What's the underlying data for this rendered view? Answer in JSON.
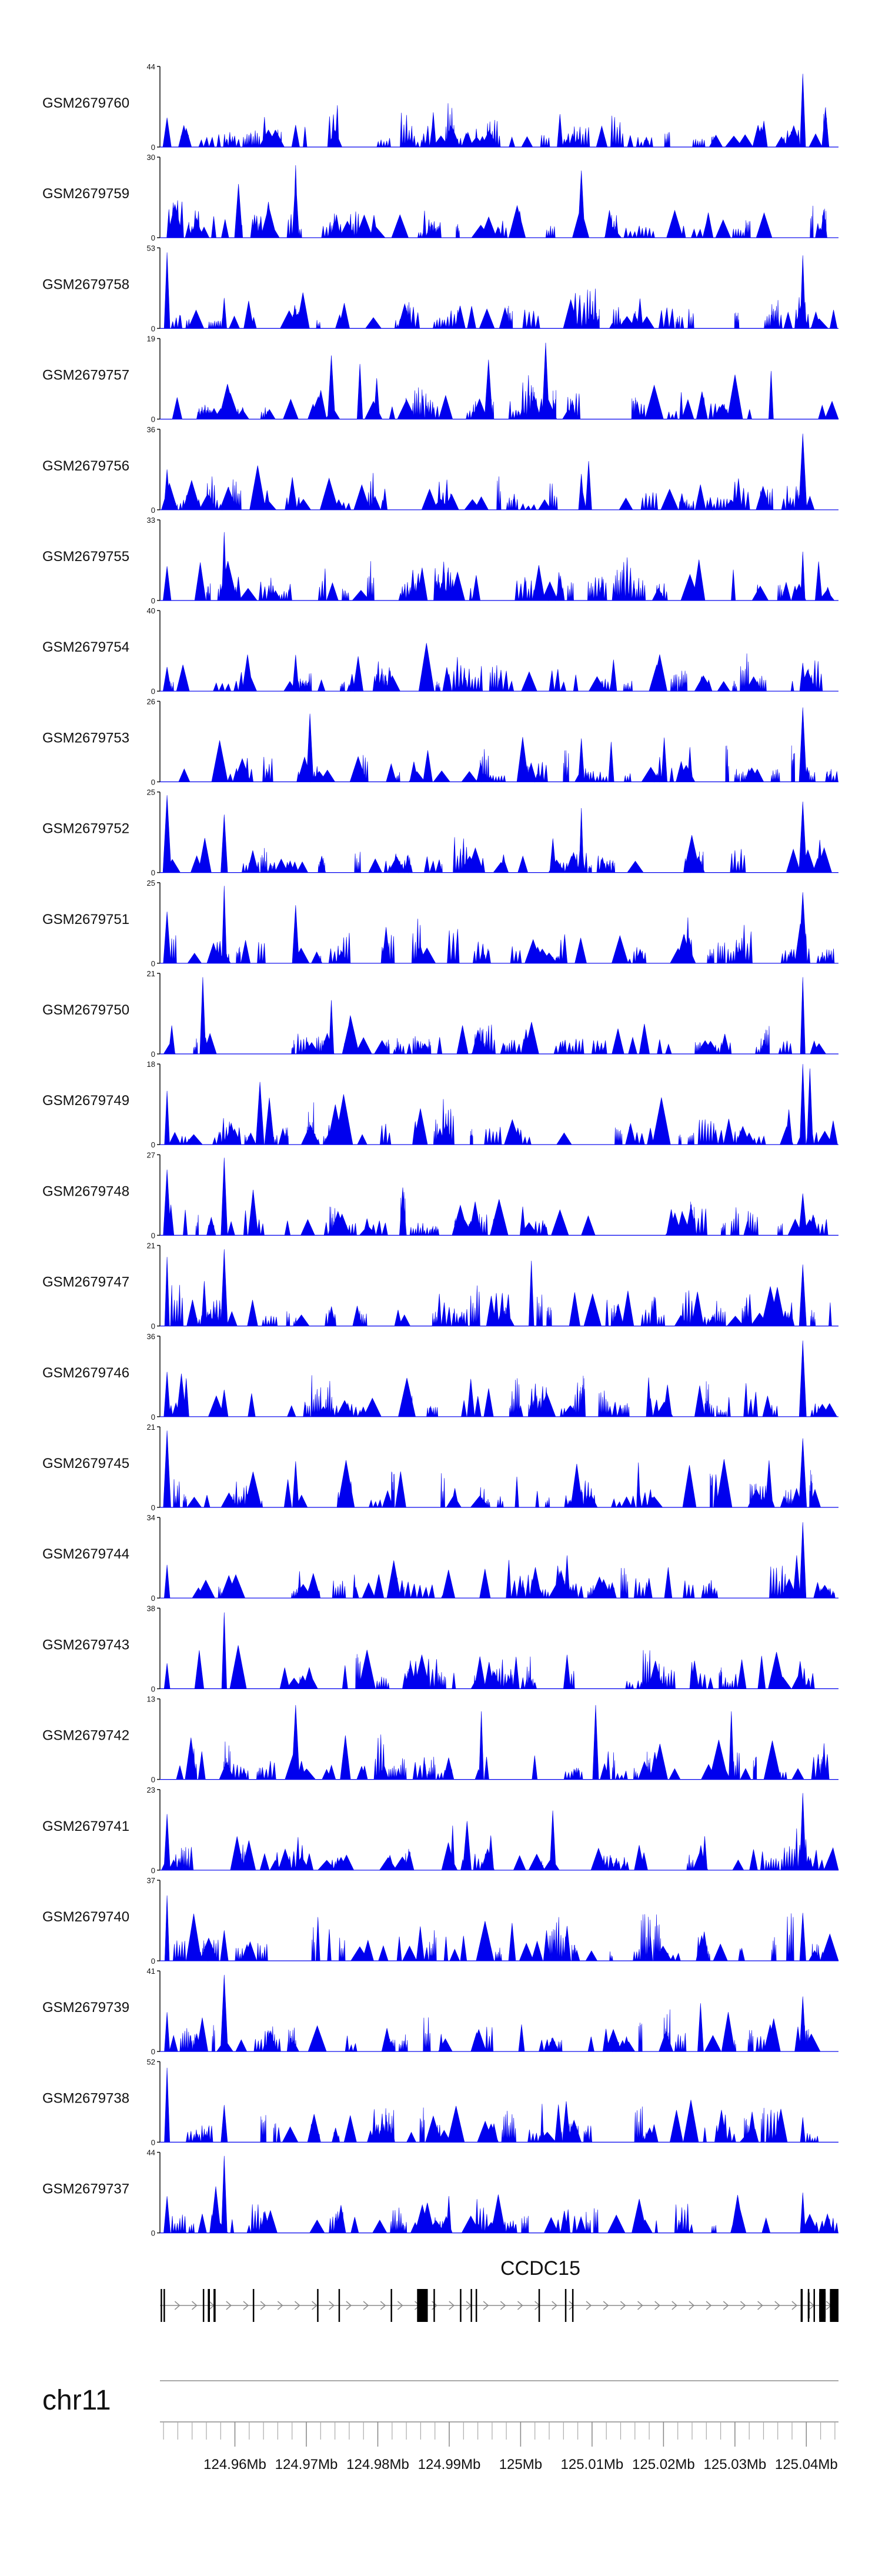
{
  "chart_data": {
    "type": "area",
    "colors": {
      "fill": "#0000ee",
      "axis": "#111111",
      "gene": "#000000",
      "intron": "#8c8c8c"
    },
    "xlim": [
      124.9495,
      125.0445
    ],
    "x_unit": "Mb",
    "tracks": [
      {
        "name": "GSM2679760",
        "ymax": "44",
        "ymin": "0",
        "seed": 7601,
        "peaks": [
          {
            "x": 125.0395,
            "y": 40
          },
          {
            "x": 124.9505,
            "y": 16
          },
          {
            "x": 125.0055,
            "y": 18
          },
          {
            "x": 124.9685,
            "y": 12
          }
        ]
      },
      {
        "name": "GSM2679759",
        "ymax": "30",
        "ymin": "0",
        "seed": 7591,
        "peaks": [
          {
            "x": 124.9685,
            "y": 27
          },
          {
            "x": 125.0085,
            "y": 25
          },
          {
            "x": 124.9685,
            "y": 22
          },
          {
            "x": 124.9605,
            "y": 20
          }
        ]
      },
      {
        "name": "GSM2679758",
        "ymax": "53",
        "ymin": "0",
        "seed": 7581,
        "peaks": [
          {
            "x": 124.9505,
            "y": 50
          },
          {
            "x": 125.0395,
            "y": 48
          },
          {
            "x": 124.9585,
            "y": 20
          }
        ]
      },
      {
        "name": "GSM2679757",
        "ymax": "19",
        "ymin": "0",
        "seed": 7571,
        "peaks": [
          {
            "x": 125.0035,
            "y": 18
          },
          {
            "x": 124.9955,
            "y": 14
          },
          {
            "x": 124.9735,
            "y": 15
          },
          {
            "x": 124.9775,
            "y": 13
          }
        ]
      },
      {
        "name": "GSM2679756",
        "ymax": "36",
        "ymin": "0",
        "seed": 7561,
        "peaks": [
          {
            "x": 125.0395,
            "y": 34
          },
          {
            "x": 124.9505,
            "y": 18
          },
          {
            "x": 125.0085,
            "y": 16
          },
          {
            "x": 125.0305,
            "y": 14
          }
        ]
      },
      {
        "name": "GSM2679755",
        "ymax": "33",
        "ymin": "0",
        "seed": 7551,
        "peaks": [
          {
            "x": 124.9585,
            "y": 28
          },
          {
            "x": 125.0395,
            "y": 20
          },
          {
            "x": 124.9505,
            "y": 14
          }
        ]
      },
      {
        "name": "GSM2679754",
        "ymax": "40",
        "ymin": "0",
        "seed": 7541,
        "peaks": [
          {
            "x": 124.9685,
            "y": 18
          },
          {
            "x": 125.0395,
            "y": 14
          },
          {
            "x": 124.9505,
            "y": 12
          }
        ]
      },
      {
        "name": "GSM2679753",
        "ymax": "26",
        "ymin": "0",
        "seed": 7531,
        "peaks": [
          {
            "x": 125.0395,
            "y": 24
          },
          {
            "x": 124.9705,
            "y": 22
          },
          {
            "x": 125.0085,
            "y": 14
          }
        ]
      },
      {
        "name": "GSM2679752",
        "ymax": "25",
        "ymin": "0",
        "seed": 7521,
        "peaks": [
          {
            "x": 124.9505,
            "y": 24
          },
          {
            "x": 125.0395,
            "y": 22
          },
          {
            "x": 125.0085,
            "y": 20
          },
          {
            "x": 124.9585,
            "y": 18
          }
        ]
      },
      {
        "name": "GSM2679751",
        "ymax": "25",
        "ymin": "0",
        "seed": 7511,
        "peaks": [
          {
            "x": 124.9585,
            "y": 24
          },
          {
            "x": 125.0395,
            "y": 22
          },
          {
            "x": 124.9685,
            "y": 18
          },
          {
            "x": 124.9505,
            "y": 16
          }
        ]
      },
      {
        "name": "GSM2679750",
        "ymax": "21",
        "ymin": "0",
        "seed": 7501,
        "peaks": [
          {
            "x": 124.9555,
            "y": 20
          },
          {
            "x": 125.0395,
            "y": 20
          },
          {
            "x": 124.9735,
            "y": 14
          }
        ]
      },
      {
        "name": "GSM2679749",
        "ymax": "18",
        "ymin": "0",
        "seed": 7491,
        "peaks": [
          {
            "x": 125.0395,
            "y": 18
          },
          {
            "x": 125.0405,
            "y": 17
          },
          {
            "x": 124.9635,
            "y": 14
          },
          {
            "x": 124.9505,
            "y": 12
          }
        ]
      },
      {
        "name": "GSM2679748",
        "ymax": "27",
        "ymin": "0",
        "seed": 7481,
        "peaks": [
          {
            "x": 124.9585,
            "y": 26
          },
          {
            "x": 124.9505,
            "y": 22
          },
          {
            "x": 124.9835,
            "y": 16
          },
          {
            "x": 125.0395,
            "y": 14
          }
        ]
      },
      {
        "name": "GSM2679747",
        "ymax": "21",
        "ymin": "0",
        "seed": 7471,
        "peaks": [
          {
            "x": 124.9585,
            "y": 20
          },
          {
            "x": 124.9505,
            "y": 18
          },
          {
            "x": 125.0015,
            "y": 17
          },
          {
            "x": 125.0395,
            "y": 16
          }
        ]
      },
      {
        "name": "GSM2679746",
        "ymax": "36",
        "ymin": "0",
        "seed": 7461,
        "peaks": [
          {
            "x": 125.0395,
            "y": 34
          },
          {
            "x": 124.9505,
            "y": 20
          },
          {
            "x": 124.9585,
            "y": 12
          }
        ]
      },
      {
        "name": "GSM2679745",
        "ymax": "21",
        "ymin": "0",
        "seed": 7451,
        "peaks": [
          {
            "x": 124.9505,
            "y": 20
          },
          {
            "x": 125.0395,
            "y": 18
          },
          {
            "x": 124.9685,
            "y": 12
          }
        ]
      },
      {
        "name": "GSM2679744",
        "ymax": "34",
        "ymin": "0",
        "seed": 7441,
        "peaks": [
          {
            "x": 125.0395,
            "y": 32
          },
          {
            "x": 124.9505,
            "y": 14
          },
          {
            "x": 125.0065,
            "y": 18
          }
        ]
      },
      {
        "name": "GSM2679743",
        "ymax": "38",
        "ymin": "0",
        "seed": 7431,
        "peaks": [
          {
            "x": 124.9585,
            "y": 36
          },
          {
            "x": 124.9505,
            "y": 12
          },
          {
            "x": 125.0065,
            "y": 16
          }
        ]
      },
      {
        "name": "GSM2679742",
        "ymax": "13",
        "ymin": "0",
        "seed": 7421,
        "peaks": [
          {
            "x": 124.9685,
            "y": 12
          },
          {
            "x": 125.0105,
            "y": 12
          },
          {
            "x": 124.9945,
            "y": 11
          },
          {
            "x": 125.0295,
            "y": 11
          }
        ]
      },
      {
        "name": "GSM2679741",
        "ymax": "23",
        "ymin": "0",
        "seed": 7411,
        "peaks": [
          {
            "x": 125.0395,
            "y": 22
          },
          {
            "x": 125.0045,
            "y": 17
          },
          {
            "x": 124.9505,
            "y": 16
          },
          {
            "x": 124.9925,
            "y": 14
          }
        ]
      },
      {
        "name": "GSM2679740",
        "ymax": "37",
        "ymin": "0",
        "seed": 7401,
        "peaks": [
          {
            "x": 124.9505,
            "y": 30
          },
          {
            "x": 125.0395,
            "y": 22
          },
          {
            "x": 124.9585,
            "y": 14
          },
          {
            "x": 125.0065,
            "y": 16
          }
        ]
      },
      {
        "name": "GSM2679739",
        "ymax": "41",
        "ymin": "0",
        "seed": 7391,
        "peaks": [
          {
            "x": 124.9585,
            "y": 39
          },
          {
            "x": 125.0395,
            "y": 28
          },
          {
            "x": 124.9505,
            "y": 20
          }
        ]
      },
      {
        "name": "GSM2679738",
        "ymax": "52",
        "ymin": "0",
        "seed": 7381,
        "peaks": [
          {
            "x": 124.9505,
            "y": 48
          },
          {
            "x": 124.9585,
            "y": 24
          },
          {
            "x": 125.0395,
            "y": 16
          }
        ]
      },
      {
        "name": "GSM2679737",
        "ymax": "44",
        "ymin": "0",
        "seed": 7371,
        "peaks": [
          {
            "x": 124.9585,
            "y": 42
          },
          {
            "x": 124.9505,
            "y": 20
          },
          {
            "x": 125.0395,
            "y": 22
          }
        ]
      }
    ],
    "gene": {
      "name": "CCDC15",
      "start": 124.9495,
      "end": 125.0445,
      "strand": "+",
      "exons": [
        {
          "start": 124.9496,
          "end": 124.9498
        },
        {
          "start": 124.95,
          "end": 124.9502
        },
        {
          "start": 124.9555,
          "end": 124.9557
        },
        {
          "start": 124.9562,
          "end": 124.9565
        },
        {
          "start": 124.957,
          "end": 124.9573
        },
        {
          "start": 124.9625,
          "end": 124.9627
        },
        {
          "start": 124.9715,
          "end": 124.9717
        },
        {
          "start": 124.9745,
          "end": 124.9747
        },
        {
          "start": 124.9818,
          "end": 124.982
        },
        {
          "start": 124.9855,
          "end": 124.987
        },
        {
          "start": 124.9878,
          "end": 124.988
        },
        {
          "start": 124.9915,
          "end": 124.9917
        },
        {
          "start": 124.993,
          "end": 124.9932
        },
        {
          "start": 124.9937,
          "end": 124.9939
        },
        {
          "start": 125.0025,
          "end": 125.0027
        },
        {
          "start": 125.0062,
          "end": 125.0064
        },
        {
          "start": 125.0072,
          "end": 125.0074
        },
        {
          "start": 125.0392,
          "end": 125.0395
        },
        {
          "start": 125.0402,
          "end": 125.0404
        },
        {
          "start": 125.041,
          "end": 125.0412
        },
        {
          "start": 125.0418,
          "end": 125.0427
        },
        {
          "start": 125.0433,
          "end": 125.0445
        }
      ],
      "tall_exons": [
        {
          "start": 125.0402,
          "end": 125.0404
        },
        {
          "start": 125.0418,
          "end": 125.0427
        },
        {
          "start": 125.0433,
          "end": 125.0445
        }
      ]
    },
    "chromosome": "chr11",
    "axis_ticks": [
      {
        "x": 124.96,
        "label": "124.96Mb"
      },
      {
        "x": 124.97,
        "label": "124.97Mb"
      },
      {
        "x": 124.98,
        "label": "124.98Mb"
      },
      {
        "x": 124.99,
        "label": "124.99Mb"
      },
      {
        "x": 125.0,
        "label": "125Mb"
      },
      {
        "x": 125.01,
        "label": "125.01Mb"
      },
      {
        "x": 125.02,
        "label": "125.02Mb"
      },
      {
        "x": 125.03,
        "label": "125.03Mb"
      },
      {
        "x": 125.04,
        "label": "125.04Mb"
      }
    ],
    "minor_tick_step": 0.002
  }
}
